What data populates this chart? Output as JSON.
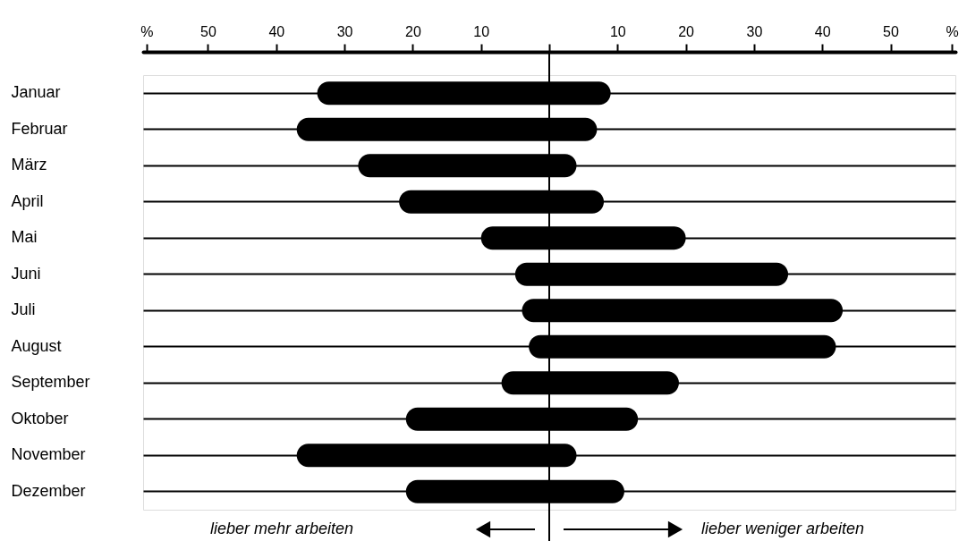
{
  "chart_data": {
    "type": "bar",
    "orientation": "horizontal",
    "categories": [
      "Januar",
      "Februar",
      "März",
      "April",
      "Mai",
      "Juni",
      "Juli",
      "August",
      "September",
      "Oktober",
      "November",
      "Dezember"
    ],
    "base": [
      -34,
      -37,
      -28,
      -22,
      -10,
      -5,
      -4,
      -3,
      -7,
      -21,
      -37,
      -21
    ],
    "values": [
      43,
      44,
      32,
      30,
      30,
      40,
      47,
      45,
      26,
      34,
      41,
      32
    ],
    "color": "#000000",
    "xlim": [
      -59.5,
      59.5
    ],
    "xticks": [
      {
        "value": -59,
        "label": "%"
      },
      {
        "value": -50,
        "label": "50"
      },
      {
        "value": -40,
        "label": "40"
      },
      {
        "value": -30,
        "label": "30"
      },
      {
        "value": -20,
        "label": "20"
      },
      {
        "value": -10,
        "label": "10"
      },
      {
        "value": 0,
        "label": null
      },
      10,
      20,
      30,
      40,
      50,
      {
        "value": 59,
        "label": "%"
      }
    ],
    "grid": "y",
    "ref_lines": [
      {
        "axis": "x",
        "value": 0,
        "color": "#000000"
      }
    ],
    "annotations": [
      "lieber mehr arbeiten",
      "lieber weniger arbeiten"
    ]
  }
}
